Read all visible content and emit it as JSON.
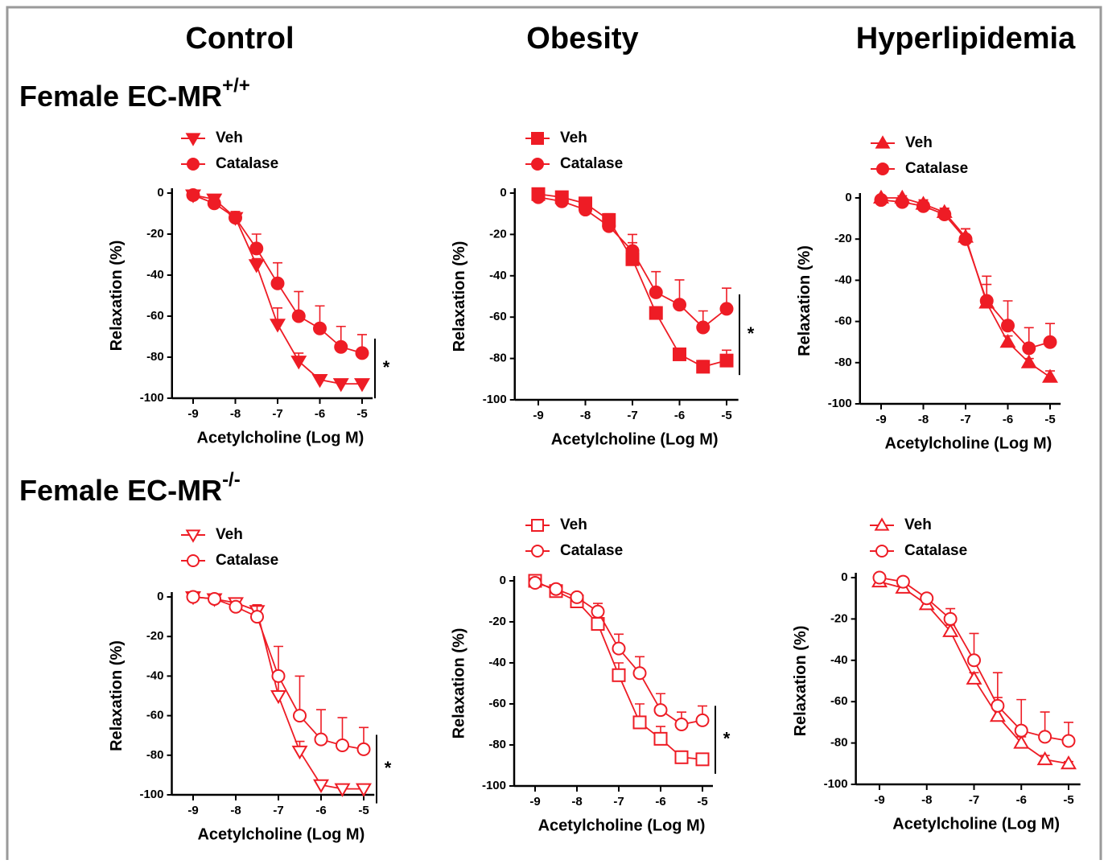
{
  "column_titles": [
    "Control",
    "Obesity",
    "Hyperlipidemia"
  ],
  "row_titles": [
    {
      "text": "Female EC-MR",
      "sup": "+/+"
    },
    {
      "text": "Female EC-MR",
      "sup": "-/-"
    }
  ],
  "chart_data": [
    {
      "type": "line",
      "x": [
        -9,
        -8.5,
        -8,
        -7.5,
        -7,
        -6.5,
        -6,
        -5.5,
        -5
      ],
      "xlim": [
        -9.5,
        -4.75
      ],
      "ylim": [
        -100,
        0
      ],
      "xticks": [
        -9,
        -8,
        -7,
        -6,
        -5
      ],
      "yticks": [
        -100,
        -80,
        -60,
        -40,
        -20,
        0
      ],
      "xlabel": "Acetylcholine (Log M)",
      "ylabel": "Relaxation (%)",
      "annotation": "*",
      "series": [
        {
          "name": "Veh",
          "color": "#ee1c25",
          "marker": "triangle-down",
          "fill": "filled",
          "values": [
            -1,
            -3,
            -12,
            -35,
            -64,
            -82,
            -91,
            -93,
            -93
          ],
          "errors": [
            1,
            2,
            2,
            3,
            8,
            4,
            2,
            1,
            1
          ]
        },
        {
          "name": "Catalase",
          "color": "#ee1c25",
          "marker": "circle",
          "fill": "filled",
          "values": [
            -1,
            -5,
            -12,
            -27,
            -44,
            -60,
            -66,
            -75,
            -78
          ],
          "errors": [
            1,
            2,
            3,
            7,
            10,
            12,
            11,
            10,
            9
          ]
        }
      ]
    },
    {
      "type": "line",
      "x": [
        -9,
        -8.5,
        -8,
        -7.5,
        -7,
        -6.5,
        -6,
        -5.5,
        -5
      ],
      "xlim": [
        -9.5,
        -4.75
      ],
      "ylim": [
        -100,
        0
      ],
      "xticks": [
        -9,
        -8,
        -7,
        -6,
        -5
      ],
      "yticks": [
        -100,
        -80,
        -60,
        -40,
        -20,
        0
      ],
      "xlabel": "Acetylcholine (Log M)",
      "ylabel": "Relaxation (%)",
      "annotation": "*",
      "series": [
        {
          "name": "Veh",
          "color": "#ee1c25",
          "marker": "square",
          "fill": "filled",
          "values": [
            -0.5,
            -2,
            -5,
            -13,
            -32,
            -58,
            -78,
            -84,
            -81
          ],
          "errors": [
            1,
            1,
            2,
            3,
            8,
            3,
            3,
            3,
            5
          ]
        },
        {
          "name": "Catalase",
          "color": "#ee1c25",
          "marker": "circle",
          "fill": "filled",
          "values": [
            -2,
            -4,
            -8,
            -16,
            -28,
            -48,
            -54,
            -65,
            -56
          ],
          "errors": [
            1,
            1,
            2,
            3,
            8,
            10,
            12,
            8,
            10
          ]
        }
      ]
    },
    {
      "type": "line",
      "x": [
        -9,
        -8.5,
        -8,
        -7.5,
        -7,
        -6.5,
        -6,
        -5.5,
        -5
      ],
      "xlim": [
        -9.5,
        -4.75
      ],
      "ylim": [
        -100,
        0
      ],
      "xticks": [
        -9,
        -8,
        -7,
        -6,
        -5
      ],
      "yticks": [
        -100,
        -80,
        -60,
        -40,
        -20,
        0
      ],
      "xlabel": "Acetylcholine (Log M)",
      "ylabel": "Relaxation (%)",
      "series": [
        {
          "name": "Veh",
          "color": "#ee1c25",
          "marker": "triangle-up",
          "fill": "filled",
          "values": [
            0,
            0,
            -3,
            -7,
            -19,
            -51,
            -70,
            -80,
            -87
          ],
          "errors": [
            1,
            1,
            2,
            2,
            4,
            9,
            3,
            2,
            3
          ]
        },
        {
          "name": "Catalase",
          "color": "#ee1c25",
          "marker": "circle",
          "fill": "filled",
          "values": [
            -1,
            -2,
            -4,
            -8,
            -20,
            -50,
            -62,
            -73,
            -70
          ],
          "errors": [
            1,
            1,
            3,
            3,
            5,
            12,
            12,
            10,
            9
          ]
        }
      ]
    },
    {
      "type": "line",
      "x": [
        -9,
        -8.5,
        -8,
        -7.5,
        -7,
        -6.5,
        -6,
        -5.5,
        -5
      ],
      "xlim": [
        -9.5,
        -4.75
      ],
      "ylim": [
        -100,
        0
      ],
      "xticks": [
        -9,
        -8,
        -7,
        -6,
        -5
      ],
      "yticks": [
        -100,
        -80,
        -60,
        -40,
        -20,
        0
      ],
      "xlabel": "Acetylcholine (Log M)",
      "ylabel": "Relaxation (%)",
      "annotation": "*",
      "series": [
        {
          "name": "Veh",
          "color": "#ee1c25",
          "marker": "triangle-down",
          "fill": "open",
          "values": [
            0,
            -1,
            -3,
            -7,
            -50,
            -78,
            -95,
            -97,
            -97
          ],
          "errors": [
            1,
            1,
            2,
            3,
            12,
            5,
            2,
            1,
            1
          ]
        },
        {
          "name": "Catalase",
          "color": "#ee1c25",
          "marker": "circle",
          "fill": "open",
          "values": [
            0,
            -1,
            -5,
            -10,
            -40,
            -60,
            -72,
            -75,
            -77
          ],
          "errors": [
            1,
            1,
            2,
            6,
            15,
            20,
            15,
            14,
            11
          ]
        }
      ]
    },
    {
      "type": "line",
      "x": [
        -9,
        -8.5,
        -8,
        -7.5,
        -7,
        -6.5,
        -6,
        -5.5,
        -5
      ],
      "xlim": [
        -9.5,
        -4.75
      ],
      "ylim": [
        -100,
        0
      ],
      "xticks": [
        -9,
        -8,
        -7,
        -6,
        -5
      ],
      "yticks": [
        -100,
        -80,
        -60,
        -40,
        -20,
        0
      ],
      "xlabel": "Acetylcholine (Log M)",
      "ylabel": "Relaxation (%)",
      "annotation": "*",
      "series": [
        {
          "name": "Veh",
          "color": "#ee1c25",
          "marker": "square",
          "fill": "open",
          "values": [
            0,
            -5,
            -10,
            -21,
            -46,
            -69,
            -77,
            -86,
            -87
          ],
          "errors": [
            1,
            1,
            2,
            3,
            6,
            9,
            6,
            3,
            2
          ]
        },
        {
          "name": "Catalase",
          "color": "#ee1c25",
          "marker": "circle",
          "fill": "open",
          "values": [
            -1,
            -4,
            -8,
            -15,
            -33,
            -45,
            -63,
            -70,
            -68
          ],
          "errors": [
            1,
            1,
            2,
            4,
            7,
            8,
            8,
            6,
            7
          ]
        }
      ]
    },
    {
      "type": "line",
      "x": [
        -9,
        -8.5,
        -8,
        -7.5,
        -7,
        -6.5,
        -6,
        -5.5,
        -5
      ],
      "xlim": [
        -9.5,
        -4.75
      ],
      "ylim": [
        -100,
        0
      ],
      "xticks": [
        -9,
        -8,
        -7,
        -6,
        -5
      ],
      "yticks": [
        -100,
        -80,
        -60,
        -40,
        -20,
        0
      ],
      "xlabel": "Acetylcholine (Log M)",
      "ylabel": "Relaxation (%)",
      "series": [
        {
          "name": "Veh",
          "color": "#ee1c25",
          "marker": "triangle-up",
          "fill": "open",
          "values": [
            -2,
            -5,
            -13,
            -26,
            -49,
            -67,
            -80,
            -88,
            -90
          ],
          "errors": [
            1,
            1,
            2,
            3,
            3,
            9,
            3,
            2,
            1
          ]
        },
        {
          "name": "Catalase",
          "color": "#ee1c25",
          "marker": "circle",
          "fill": "open",
          "values": [
            0,
            -2,
            -10,
            -20,
            -40,
            -62,
            -74,
            -77,
            -79
          ],
          "errors": [
            1,
            1,
            2,
            5,
            13,
            16,
            15,
            12,
            9
          ]
        }
      ]
    }
  ]
}
